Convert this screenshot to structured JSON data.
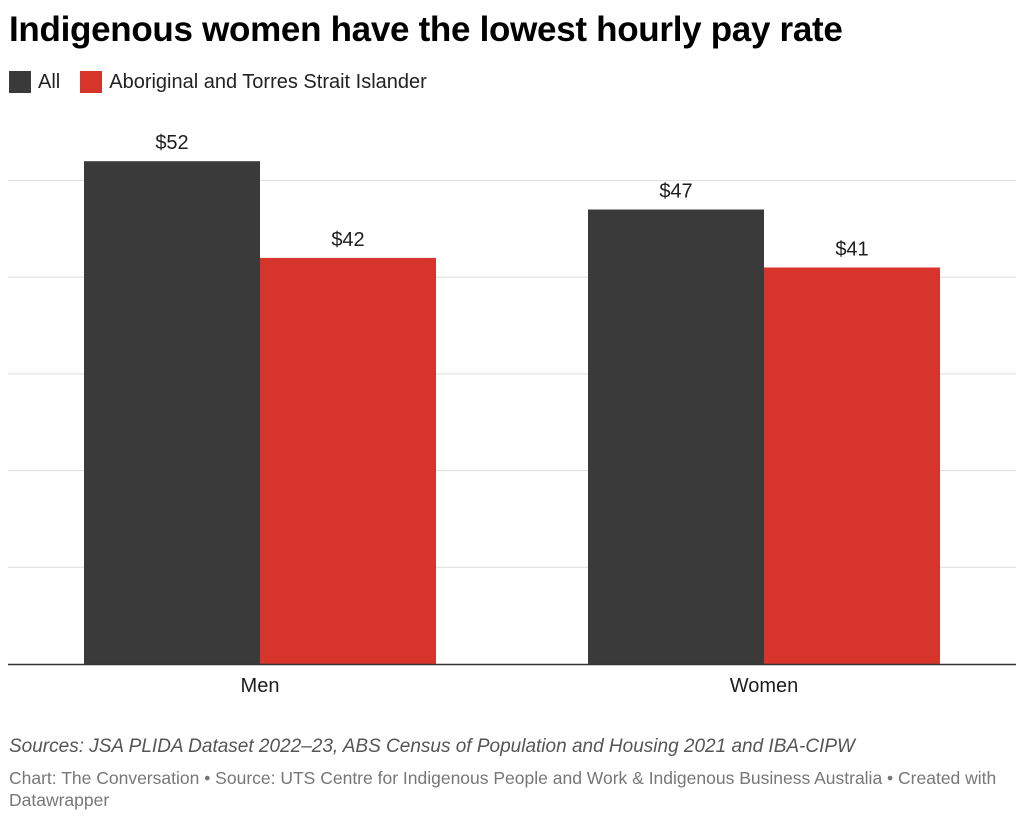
{
  "title": "Indigenous women have the lowest hourly pay rate",
  "notes": "Sources: JSA PLIDA Dataset 2022–23, ABS Census of Population and Housing 2021 and IBA-CIPW",
  "credit": "Chart: The Conversation • Source: UTS Centre for Indigenous People and Work & Indigenous Business Australia • Created with Datawrapper",
  "colors": {
    "all": "#3a3a3a",
    "indigenous": "#d7352b",
    "grid": "#dddddd",
    "baseline": "#333333"
  },
  "chart_data": {
    "type": "bar",
    "categories": [
      "Men",
      "Women"
    ],
    "series": [
      {
        "name": "All",
        "values": [
          52,
          47
        ],
        "labels": [
          "$52",
          "$47"
        ],
        "color": "#3a3a3a"
      },
      {
        "name": "Aboriginal and Torres Strait Islander",
        "values": [
          42,
          41
        ],
        "labels": [
          "$42",
          "$41"
        ],
        "color": "#d7352b"
      }
    ],
    "ylim": [
      0,
      52
    ],
    "grid_values": [
      10,
      20,
      30,
      40,
      50
    ],
    "grid": true,
    "legend_position": "top-left",
    "xlabel": "",
    "ylabel": ""
  }
}
